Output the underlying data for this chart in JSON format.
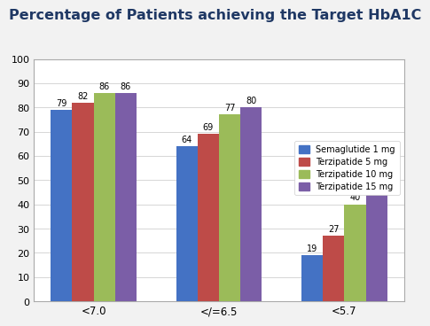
{
  "title": "Percentage of Patients achieving the Target HbA1C",
  "categories": [
    "<7.0",
    "</=6.5",
    "<5.7"
  ],
  "series": {
    "Semaglutide 1 mg": [
      79,
      64,
      19
    ],
    "Terzipatide 5 mg": [
      82,
      69,
      27
    ],
    "Terzipatide 10 mg": [
      86,
      77,
      40
    ],
    "Terzipatide 15 mg": [
      86,
      80,
      46
    ]
  },
  "colors": {
    "Semaglutide 1 mg": "#4472C4",
    "Terzipatide 5 mg": "#BE4B48",
    "Terzipatide 10 mg": "#9BBB59",
    "Terzipatide 15 mg": "#7B5EA7"
  },
  "ylim": [
    0,
    100
  ],
  "yticks": [
    0,
    10,
    20,
    30,
    40,
    50,
    60,
    70,
    80,
    90,
    100
  ],
  "title_color": "#1F3864",
  "title_fontsize": 11.5,
  "background_color": "#F2F2F2",
  "chart_bg": "#FFFFFF",
  "bar_width": 0.17,
  "label_fontsize": 7.0
}
